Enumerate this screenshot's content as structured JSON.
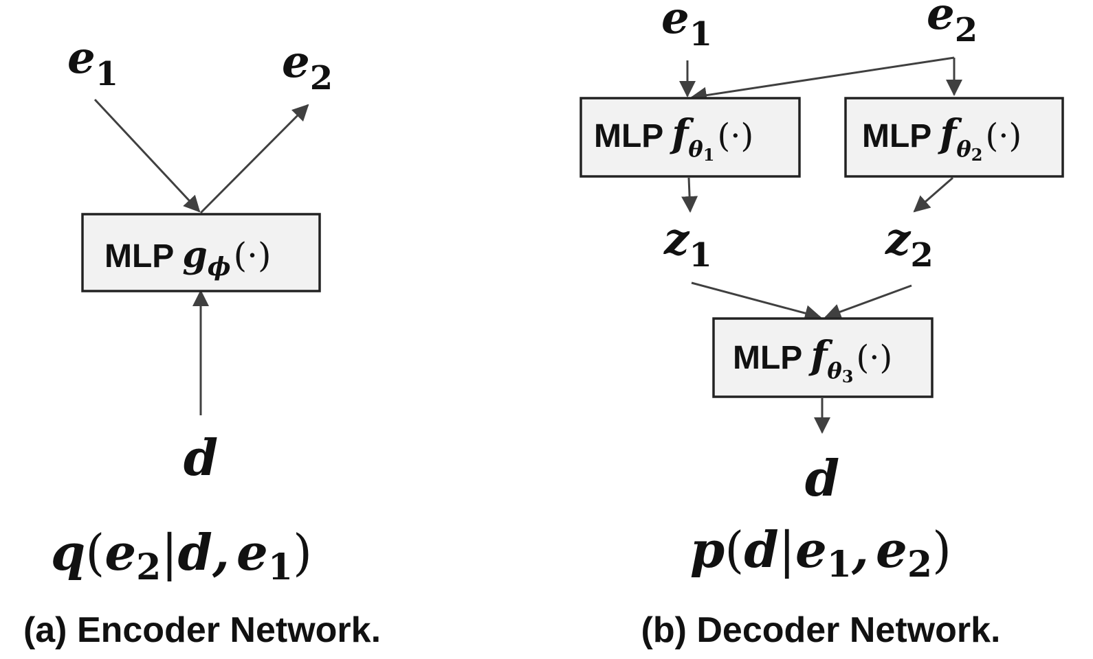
{
  "colors": {
    "box_fill": "#f2f2f2",
    "box_border": "#222222",
    "arrow": "#404040",
    "text": "#111111"
  },
  "encoder": {
    "caption": "(a) Encoder Network.",
    "input_top_left": {
      "base": "e",
      "sub": "1"
    },
    "output_top_right": {
      "base": "e",
      "sub": "2"
    },
    "input_bottom": "d",
    "mlp": {
      "prefix": "MLP",
      "fn": "g",
      "sub": "ϕ",
      "args": "(·)"
    },
    "formula": {
      "fn": "q",
      "open": "(",
      "a": "e",
      "a_sub": "2",
      "bar": "|",
      "b": "d",
      "comma": ",",
      "c": "e",
      "c_sub": "1",
      "close": ")"
    }
  },
  "decoder": {
    "caption": "(b) Decoder Network.",
    "input_left": {
      "base": "e",
      "sub": "1"
    },
    "input_right": {
      "base": "e",
      "sub": "2"
    },
    "mlp1": {
      "prefix": "MLP",
      "fn": "f",
      "sub": "θ",
      "subsub": "1",
      "args": "(·)"
    },
    "mlp2": {
      "prefix": "MLP",
      "fn": "f",
      "sub": "θ",
      "subsub": "2",
      "args": "(·)"
    },
    "mlp3": {
      "prefix": "MLP",
      "fn": "f",
      "sub": "θ",
      "subsub": "3",
      "args": "(·)"
    },
    "latent_left": {
      "base": "z",
      "sub": "1"
    },
    "latent_right": {
      "base": "z",
      "sub": "2"
    },
    "output": "d",
    "formula": {
      "fn": "p",
      "open": "(",
      "a": "d",
      "bar": "|",
      "b": "e",
      "b_sub": "1",
      "comma": ",",
      "c": "e",
      "c_sub": "2",
      "close": ")"
    }
  }
}
